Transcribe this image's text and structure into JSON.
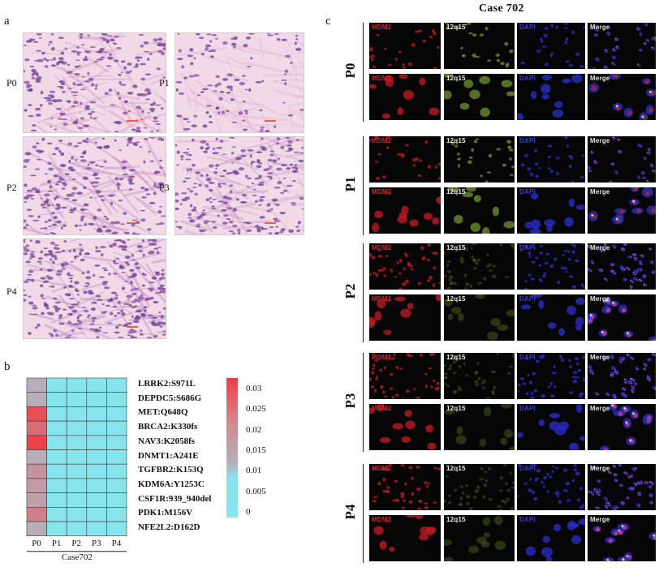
{
  "panels": {
    "a": {
      "letter": "a"
    },
    "b": {
      "letter": "b"
    },
    "c": {
      "letter": "c"
    }
  },
  "he_images": [
    {
      "label": "P0",
      "hue": "#d9a0c9"
    },
    {
      "label": "P1",
      "hue": "#e8b6d2"
    },
    {
      "label": "P2",
      "hue": "#c994c6"
    },
    {
      "label": "P3",
      "hue": "#d0a2c8"
    },
    {
      "label": "P4",
      "hue": "#bf8cc4"
    }
  ],
  "fluorescence": {
    "title": "Case 702",
    "channels": [
      "MDM2",
      "12q15",
      "DAPI",
      "Merge"
    ],
    "channel_colors": [
      "#d8202a",
      "#e8f0d8",
      "#3a3ad8",
      "#e8e8e8"
    ],
    "groups": [
      "P0",
      "P1",
      "P2",
      "P3",
      "P4"
    ]
  },
  "chart_data": {
    "type": "heatmap",
    "rows": [
      "LRRK2:S971L",
      "DEPDC5:S686G",
      "MET:Q648Q",
      "BRCA2:K330fs",
      "NAV3:K2058fs",
      "DNMT1:A241E",
      "TGFBR2:K153Q",
      "KDM6A:Y1253C",
      "CSF1R:939_940del",
      "PDK1:M156V",
      "NFE2L2:D162D"
    ],
    "columns": [
      "P0",
      "P1",
      "P2",
      "P3",
      "P4"
    ],
    "values": [
      [
        0.01,
        0,
        0,
        0,
        0
      ],
      [
        0.01,
        0,
        0,
        0,
        0
      ],
      [
        0.03,
        0,
        0,
        0,
        0
      ],
      [
        0.024,
        0,
        0,
        0,
        0
      ],
      [
        0.033,
        0,
        0,
        0,
        0
      ],
      [
        0.01,
        0,
        0,
        0,
        0
      ],
      [
        0.016,
        0,
        0,
        0,
        0
      ],
      [
        0.014,
        0,
        0,
        0,
        0
      ],
      [
        0.013,
        0,
        0,
        0,
        0
      ],
      [
        0.02,
        0,
        0,
        0,
        0
      ],
      [
        0.01,
        0,
        0,
        0,
        0
      ]
    ],
    "colorbar_ticks": [
      "0.03",
      "0.025",
      "0.02",
      "0.015",
      "0.01",
      "0.005",
      "0"
    ],
    "colorbar_range": [
      0,
      0.034
    ],
    "colors": {
      "low": "#88e4ec",
      "mid": "#b8aeb8",
      "high": "#f03c44"
    },
    "xlabel": "Case702"
  }
}
